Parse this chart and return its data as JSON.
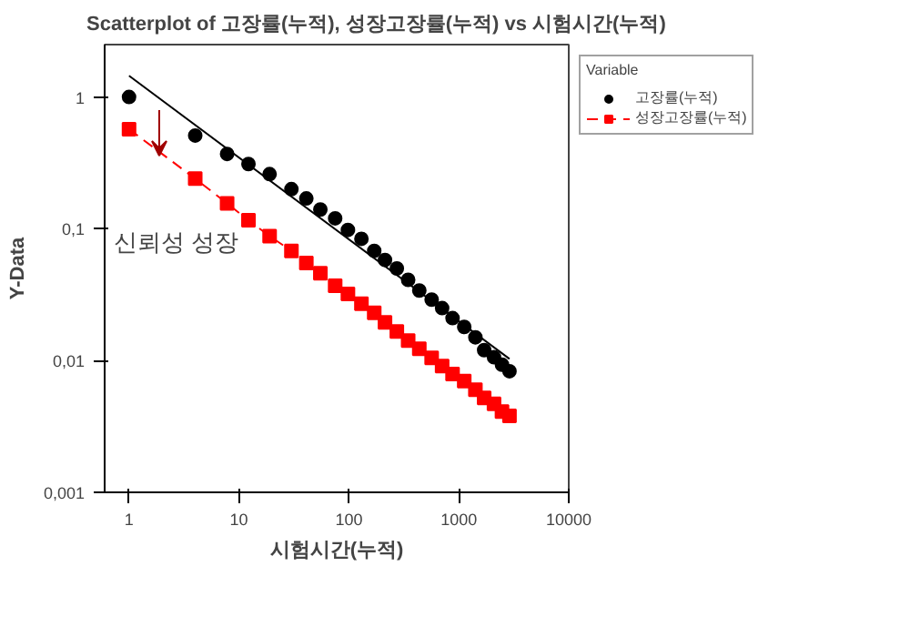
{
  "chart_data": {
    "type": "scatter",
    "title": "Scatterplot of 고장률(누적), 성장고장률(누적) vs 시험시간(누적)",
    "xlabel": "시험시간(누적)",
    "ylabel": "Y-Data",
    "legend_title": "Variable",
    "annotations": [
      "신뢰성 성장"
    ],
    "log": "xy",
    "xlim": [
      0.6,
      10000
    ],
    "ylim": [
      0.001,
      2.5
    ],
    "xticks": [
      1,
      10,
      100,
      1000,
      10000
    ],
    "yticks": [
      {
        "value": 0.001,
        "label": "0,001"
      },
      {
        "value": 0.01,
        "label": "0,01"
      },
      {
        "value": 0.1,
        "label": "0,1"
      },
      1
    ],
    "grid": false,
    "legend": "right",
    "x": [
      1,
      4,
      7.8,
      12.2,
      19,
      30,
      41,
      55,
      75,
      98,
      130,
      170,
      213,
      273,
      346,
      437,
      566,
      705,
      877,
      1120,
      1415,
      1700,
      2090,
      2470,
      2890
    ],
    "series": [
      {
        "name": "고장률(누적)",
        "type": "scatter",
        "marker": "circle",
        "color": "#000000",
        "values": [
          1,
          0.51,
          0.37,
          0.31,
          0.26,
          0.2,
          0.17,
          0.14,
          0.12,
          0.098,
          0.084,
          0.068,
          0.058,
          0.05,
          0.041,
          0.034,
          0.029,
          0.025,
          0.021,
          0.018,
          0.015,
          0.012,
          0.0106,
          0.0093,
          0.0083
        ]
      },
      {
        "name": "성장고장률(누적)",
        "type": "line",
        "marker": "square",
        "line_style": "dashed",
        "color": "#ff0000",
        "values": [
          0.57,
          0.24,
          0.156,
          0.116,
          0.088,
          0.068,
          0.055,
          0.046,
          0.037,
          0.032,
          0.027,
          0.023,
          0.0195,
          0.0166,
          0.0142,
          0.0123,
          0.0105,
          0.0091,
          0.0079,
          0.007,
          0.006,
          0.0052,
          0.0047,
          0.0041,
          0.0038
        ]
      },
      {
        "type": "line",
        "marker": "none",
        "line_style": "solid",
        "color": "#000000",
        "x": [
          1,
          2890
        ],
        "values": [
          1.45,
          0.0103
        ]
      }
    ]
  }
}
